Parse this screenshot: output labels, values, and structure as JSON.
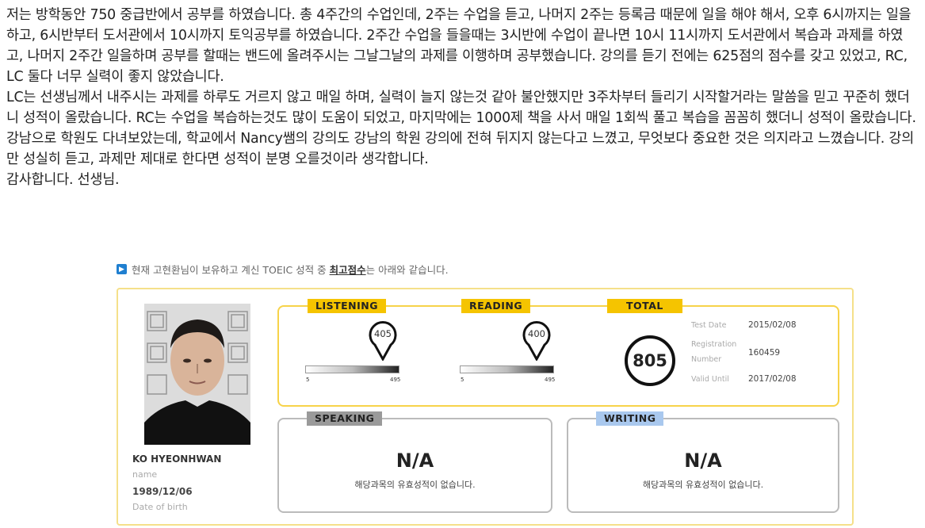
{
  "article": {
    "paragraph1": "저는 방학동안 750 중급반에서 공부를 하였습니다. 총 4주간의 수업인데, 2주는 수업을 듣고, 나머지 2주는 등록금 때문에 일을 해야 해서, 오후 6시까지는 일을 하고, 6시반부터 도서관에서 10시까지 토익공부를 하였습니다. 2주간 수업을 들을때는 3시반에 수업이 끝나면 10시 11시까지 도서관에서 복습과 과제를 하였고, 나머지 2주간 일을하며 공부를 할때는 밴드에 올려주시는 그날그날의 과제를 이행하며 공부했습니다. 강의를 듣기 전에는 625점의 점수를 갖고 있었고, RC, LC 둘다 너무 실력이 좋지 않았습니다.",
    "paragraph2": "LC는 선생님께서 내주시는 과제를 하루도 거르지 않고 매일 하며, 실력이 늘지 않는것 같아 불안했지만 3주차부터 들리기 시작할거라는 말씀을 믿고 꾸준히 했더니 성적이 올랐습니다. RC는 수업을 복습하는것도 많이 도움이 되었고, 마지막에는 1000제 책을 사서 매일 1회씩 풀고 복습을 꼼꼼히 했더니 성적이 올랐습니다. 강남으로 학원도 다녀보았는데, 학교에서 Nancy쌤의 강의도 강남의 학원 강의에 전혀 뒤지지 않는다고 느꼈고, 무엇보다 중요한 것은 의지라고 느꼈습니다. 강의만 성실히 듣고, 과제만 제대로 한다면 성적이 분명 오를것이라 생각합니다.",
    "paragraph3": "감사합니다. 선생님."
  },
  "notice": {
    "prefix": "현재 고현환님이 보유하고 계신 TOEIC 성적 중 ",
    "emphasis": "최고점수",
    "suffix": "는 아래와 같습니다."
  },
  "profile": {
    "name": "KO HYEONHWAN",
    "name_label": "name",
    "birth": "1989/12/06",
    "birth_label": "Date of birth"
  },
  "scores": {
    "listening_label": "LISTENING",
    "reading_label": "READING",
    "total_label": "TOTAL",
    "listening": "405",
    "reading": "400",
    "total": "805",
    "bar_min": "5",
    "bar_max": "495"
  },
  "meta": {
    "test_date_label": "Test Date",
    "test_date": "2015/02/08",
    "reg_label_1": "Registration",
    "reg_label_2": "Number",
    "reg_number": "160459",
    "valid_label": "Valid Until",
    "valid_until": "2017/02/08"
  },
  "speaking": {
    "label": "SPEAKING",
    "value": "N/A",
    "message": "해당과목의 유효성적이 없습니다."
  },
  "writing": {
    "label": "WRITING",
    "value": "N/A",
    "message": "해당과목의 유효성적이 없습니다."
  },
  "colors": {
    "accent": "#f5c400",
    "speaking_tag": "#9a9a9a",
    "writing_tag": "#a9c8ee"
  },
  "icons": {
    "notice": "arrow-right-icon",
    "score_marker": "map-pin-icon"
  }
}
